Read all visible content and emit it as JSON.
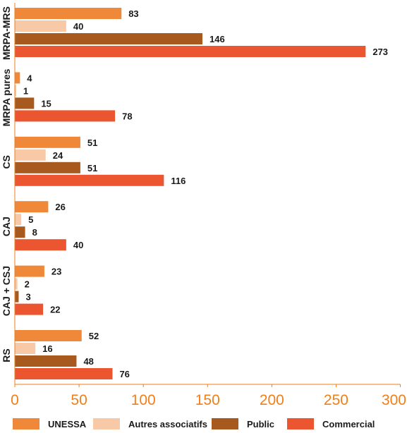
{
  "chart_data": {
    "type": "bar",
    "orientation": "horizontal",
    "categories": [
      "MRPA-MRS",
      "MRPA pures",
      "CS",
      "CAJ",
      "CAJ + CSJ",
      "RS"
    ],
    "series": [
      {
        "name": "UNESSA",
        "color": "#f0883a",
        "values": [
          83,
          4,
          51,
          26,
          23,
          52
        ]
      },
      {
        "name": "Autres associatifs",
        "color": "#f8c9a6",
        "values": [
          40,
          1,
          24,
          5,
          2,
          16
        ]
      },
      {
        "name": "Public",
        "color": "#a85a1e",
        "values": [
          146,
          15,
          51,
          8,
          3,
          48
        ]
      },
      {
        "name": "Commercial",
        "color": "#eb5530",
        "values": [
          273,
          78,
          116,
          40,
          22,
          76
        ]
      }
    ],
    "xlim": [
      0,
      300
    ],
    "xticks": [
      0,
      50,
      100,
      150,
      200,
      250,
      300
    ],
    "grid": false,
    "legend_position": "bottom",
    "axis_color": "#f07f1a"
  }
}
